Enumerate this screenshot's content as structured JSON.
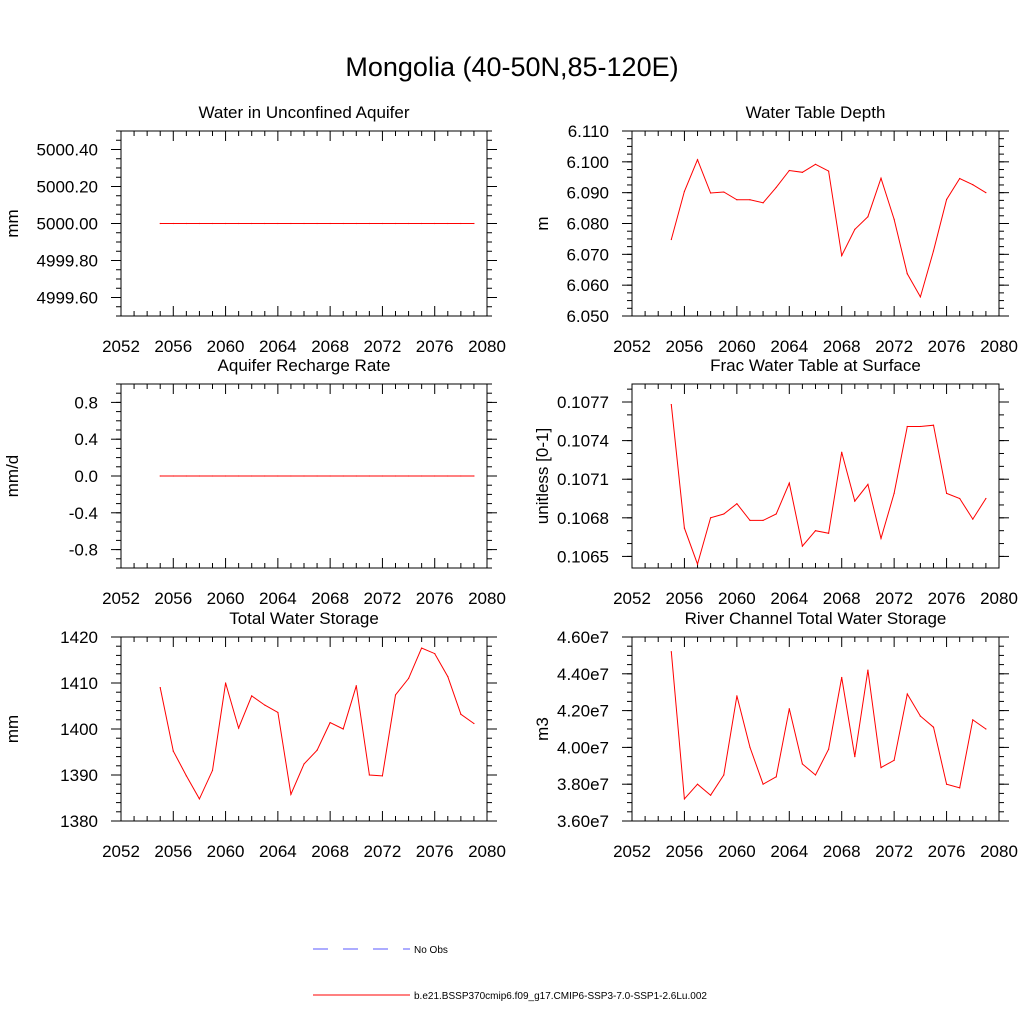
{
  "figure": {
    "title": "Mongolia (40-50N,85-120E)",
    "line_color": "#ff0000",
    "noobs_color": "#5a5aff"
  },
  "legend": {
    "entries": [
      {
        "label": "No Obs",
        "style": "dashed",
        "color": "#5a5aff"
      },
      {
        "label": "b.e21.BSSP370cmip6.f09_g17.CMIP6-SSP3-7.0-SSP1-2.6Lu.002",
        "style": "solid",
        "color": "#ff0000"
      }
    ]
  },
  "chart_data": [
    {
      "type": "line",
      "title": "Water in Unconfined Aquifer",
      "xlabel": "",
      "ylabel": "mm",
      "xlim": [
        2052,
        2080
      ],
      "ylim": [
        4999.5,
        5000.5
      ],
      "xticks": [
        2052,
        2056,
        2060,
        2064,
        2068,
        2072,
        2076,
        2080
      ],
      "xticklabels": [
        "2052",
        "2056",
        "2060",
        "2064",
        "2068",
        "2072",
        "2076",
        "2080"
      ],
      "yticks": [
        4999.6,
        4999.8,
        5000.0,
        5000.2,
        5000.4
      ],
      "yticklabels": [
        "4999.60",
        "4999.80",
        "5000.00",
        "5000.20",
        "5000.40"
      ],
      "yminor": 0.05,
      "x": [
        2055,
        2056,
        2057,
        2058,
        2059,
        2060,
        2061,
        2062,
        2063,
        2064,
        2065,
        2066,
        2067,
        2068,
        2069,
        2070,
        2071,
        2072,
        2073,
        2074,
        2075,
        2076,
        2077,
        2078,
        2079
      ],
      "series": [
        {
          "values": [
            5000,
            5000,
            5000,
            5000,
            5000,
            5000,
            5000,
            5000,
            5000,
            5000,
            5000,
            5000,
            5000,
            5000,
            5000,
            5000,
            5000,
            5000,
            5000,
            5000,
            5000,
            5000,
            5000,
            5000,
            5000
          ]
        }
      ]
    },
    {
      "type": "line",
      "title": "Water Table Depth",
      "xlabel": "",
      "ylabel": "m",
      "xlim": [
        2052,
        2080
      ],
      "ylim": [
        6.05,
        6.11
      ],
      "xticks": [
        2052,
        2056,
        2060,
        2064,
        2068,
        2072,
        2076,
        2080
      ],
      "xticklabels": [
        "2052",
        "2056",
        "2060",
        "2064",
        "2068",
        "2072",
        "2076",
        "2080"
      ],
      "yticks": [
        6.05,
        6.06,
        6.07,
        6.08,
        6.09,
        6.1,
        6.11
      ],
      "yticklabels": [
        "6.050",
        "6.060",
        "6.070",
        "6.080",
        "6.090",
        "6.100",
        "6.110"
      ],
      "yminor": 0.0025,
      "x": [
        2055,
        2056,
        2057,
        2058,
        2059,
        2060,
        2061,
        2062,
        2063,
        2064,
        2065,
        2066,
        2067,
        2068,
        2069,
        2070,
        2071,
        2072,
        2073,
        2074,
        2075,
        2076,
        2077,
        2078,
        2079
      ],
      "series": [
        {
          "values": [
            6.0748,
            6.0904,
            6.1007,
            6.0899,
            6.0902,
            6.0877,
            6.0877,
            6.0867,
            6.0917,
            6.0972,
            6.0966,
            6.0992,
            6.097,
            6.0696,
            6.0781,
            6.0822,
            6.0947,
            6.0814,
            6.0637,
            6.0562,
            6.0711,
            6.0878,
            6.0946,
            6.0926,
            6.09
          ]
        }
      ]
    },
    {
      "type": "line",
      "title": "Aquifer Recharge Rate",
      "xlabel": "",
      "ylabel": "mm/d",
      "xlim": [
        2052,
        2080
      ],
      "ylim": [
        -1.0,
        1.0
      ],
      "xticks": [
        2052,
        2056,
        2060,
        2064,
        2068,
        2072,
        2076,
        2080
      ],
      "xticklabels": [
        "2052",
        "2056",
        "2060",
        "2064",
        "2068",
        "2072",
        "2076",
        "2080"
      ],
      "yticks": [
        -0.8,
        -0.4,
        0.0,
        0.4,
        0.8
      ],
      "yticklabels": [
        "-0.8",
        "-0.4",
        "0.0",
        "0.4",
        "0.8"
      ],
      "yminor": 0.1,
      "x": [
        2055,
        2056,
        2057,
        2058,
        2059,
        2060,
        2061,
        2062,
        2063,
        2064,
        2065,
        2066,
        2067,
        2068,
        2069,
        2070,
        2071,
        2072,
        2073,
        2074,
        2075,
        2076,
        2077,
        2078,
        2079
      ],
      "series": [
        {
          "values": [
            0,
            0,
            0,
            0,
            0,
            0,
            0,
            0,
            0,
            0,
            0,
            0,
            0,
            0,
            0,
            0,
            0,
            0,
            0,
            0,
            0,
            0,
            0,
            0,
            0
          ]
        }
      ]
    },
    {
      "type": "line",
      "title": "Frac Water Table at Surface",
      "xlabel": "",
      "ylabel": "unitless [0-1]",
      "xlim": [
        2052,
        2080
      ],
      "ylim": [
        0.10641,
        0.10784
      ],
      "xticks": [
        2052,
        2056,
        2060,
        2064,
        2068,
        2072,
        2076,
        2080
      ],
      "xticklabels": [
        "2052",
        "2056",
        "2060",
        "2064",
        "2068",
        "2072",
        "2076",
        "2080"
      ],
      "yticks": [
        0.1065,
        0.1068,
        0.1071,
        0.1074,
        0.1077
      ],
      "yticklabels": [
        "0.1065",
        "0.1068",
        "0.1071",
        "0.1074",
        "0.1077"
      ],
      "yminor": 0.0001,
      "x": [
        2055,
        2056,
        2057,
        2058,
        2059,
        2060,
        2061,
        2062,
        2063,
        2064,
        2065,
        2066,
        2067,
        2068,
        2069,
        2070,
        2071,
        2072,
        2073,
        2074,
        2075,
        2076,
        2077,
        2078,
        2079
      ],
      "series": [
        {
          "values": [
            0.10768,
            0.10672,
            0.10644,
            0.1068,
            0.10683,
            0.10691,
            0.10678,
            0.10678,
            0.10683,
            0.10707,
            0.10658,
            0.1067,
            0.10668,
            0.10731,
            0.10693,
            0.10706,
            0.10664,
            0.10699,
            0.10751,
            0.10751,
            0.10752,
            0.10699,
            0.10695,
            0.10679,
            0.10695
          ]
        }
      ]
    },
    {
      "type": "line",
      "title": "Total Water Storage",
      "xlabel": "",
      "ylabel": "mm",
      "xlim": [
        2052,
        2080
      ],
      "ylim": [
        1380,
        1420
      ],
      "xticks": [
        2052,
        2056,
        2060,
        2064,
        2068,
        2072,
        2076,
        2080
      ],
      "xticklabels": [
        "2052",
        "2056",
        "2060",
        "2064",
        "2068",
        "2072",
        "2076",
        "2080"
      ],
      "yticks": [
        1380,
        1390,
        1400,
        1410,
        1420
      ],
      "yticklabels": [
        "1380",
        "1390",
        "1400",
        "1410",
        "1420"
      ],
      "yminor": 2,
      "x": [
        2055,
        2056,
        2057,
        2058,
        2059,
        2060,
        2061,
        2062,
        2063,
        2064,
        2065,
        2066,
        2067,
        2068,
        2069,
        2070,
        2071,
        2072,
        2073,
        2074,
        2075,
        2076,
        2077,
        2078,
        2079
      ],
      "series": [
        {
          "values": [
            1409.0,
            1395.2,
            1389.8,
            1384.8,
            1391.0,
            1410.0,
            1400.2,
            1407.2,
            1405.2,
            1403.6,
            1385.8,
            1392.4,
            1395.4,
            1401.4,
            1400.0,
            1409.4,
            1390.0,
            1389.8,
            1407.4,
            1411.0,
            1417.6,
            1416.4,
            1411.4,
            1403.2,
            1401.2
          ]
        }
      ]
    },
    {
      "type": "line",
      "title": "River Channel Total Water Storage",
      "xlabel": "",
      "ylabel": "m3",
      "xlim": [
        2052,
        2080
      ],
      "ylim": [
        36000000,
        46000000
      ],
      "xticks": [
        2052,
        2056,
        2060,
        2064,
        2068,
        2072,
        2076,
        2080
      ],
      "xticklabels": [
        "2052",
        "2056",
        "2060",
        "2064",
        "2068",
        "2072",
        "2076",
        "2080"
      ],
      "yticks": [
        36000000,
        38000000,
        40000000,
        42000000,
        44000000,
        46000000
      ],
      "yticklabels": [
        "3.60e7",
        "3.80e7",
        "4.00e7",
        "4.20e7",
        "4.40e7",
        "4.60e7"
      ],
      "yminor": 500000,
      "x": [
        2055,
        2056,
        2057,
        2058,
        2059,
        2060,
        2061,
        2062,
        2063,
        2064,
        2065,
        2066,
        2067,
        2068,
        2069,
        2070,
        2071,
        2072,
        2073,
        2074,
        2075,
        2076,
        2077,
        2078,
        2079
      ],
      "series": [
        {
          "values": [
            45200000,
            37200000,
            38000000,
            37400000,
            38500000,
            42800000,
            40000000,
            38000000,
            38400000,
            42100000,
            39100000,
            38500000,
            39900000,
            43800000,
            39500000,
            44200000,
            38900000,
            39300000,
            42900000,
            41700000,
            41100000,
            38000000,
            37800000,
            41500000,
            41000000
          ]
        }
      ]
    }
  ]
}
